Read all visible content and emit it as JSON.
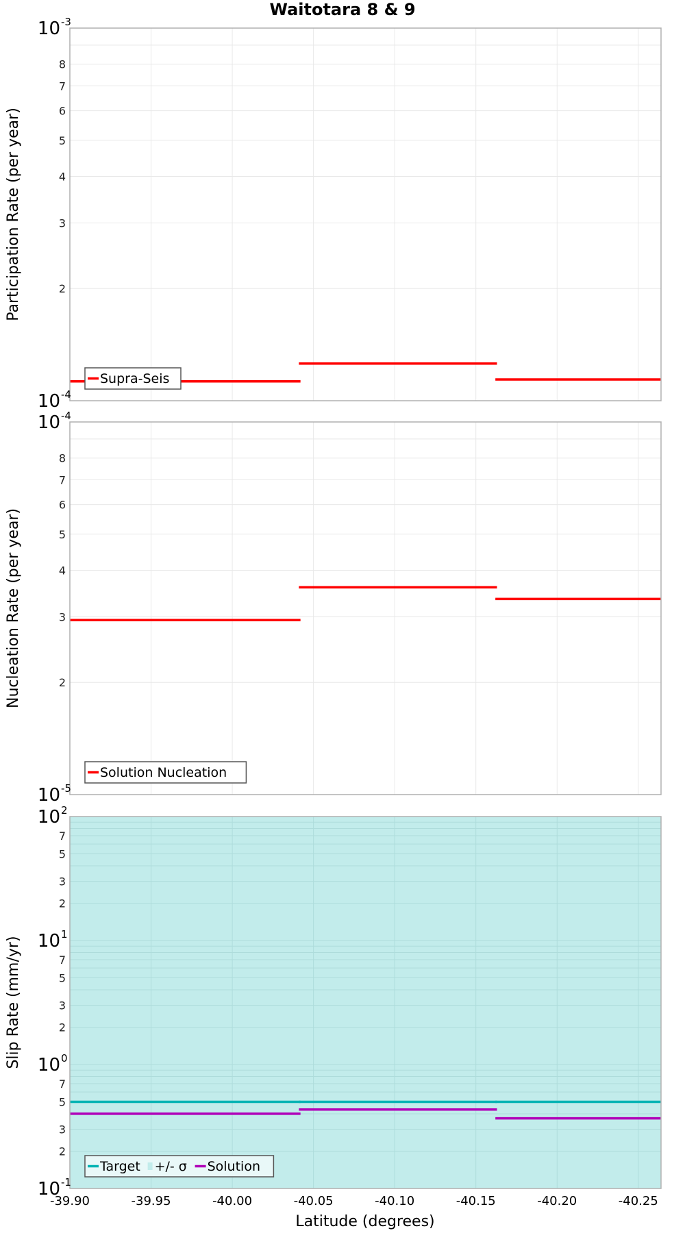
{
  "chart_data": [
    {
      "type": "line",
      "panel": "participation",
      "title": "Waitotara 8 & 9",
      "xlabel": "",
      "ylabel": "Participation Rate (per year)",
      "yscale": "log",
      "ylim": [
        0.0001,
        0.001
      ],
      "xlim": [
        -39.9,
        -40.264
      ],
      "x_reversed": true,
      "grid": true,
      "legend_position": "lower left",
      "legend": [
        "Supra-Seis"
      ],
      "series": [
        {
          "name": "Supra-Seis",
          "color": "#ff0000",
          "style": "step",
          "segments": [
            {
              "x_start": -39.9,
              "x_end": -40.042,
              "y": 0.0001127
            },
            {
              "x_start": -40.041,
              "x_end": -40.163,
              "y": 0.0001258
            },
            {
              "x_start": -40.162,
              "x_end": -40.264,
              "y": 0.000114
            }
          ]
        }
      ],
      "y_ticks_major": [
        "10^-4",
        "10^-3"
      ],
      "y_ticks_minor": [
        "2",
        "3",
        "4",
        "5",
        "6",
        "7",
        "8"
      ]
    },
    {
      "type": "line",
      "panel": "nucleation",
      "xlabel": "",
      "ylabel": "Nucleation Rate (per year)",
      "yscale": "log",
      "ylim": [
        1e-05,
        0.0001
      ],
      "xlim": [
        -39.9,
        -40.264
      ],
      "x_reversed": true,
      "grid": true,
      "legend_position": "lower left",
      "legend": [
        "Solution Nucleation"
      ],
      "series": [
        {
          "name": "Solution Nucleation",
          "color": "#ff0000",
          "style": "step",
          "segments": [
            {
              "x_start": -39.9,
              "x_end": -40.042,
              "y": 2.94e-05
            },
            {
              "x_start": -40.041,
              "x_end": -40.163,
              "y": 3.6e-05
            },
            {
              "x_start": -40.162,
              "x_end": -40.264,
              "y": 3.35e-05
            }
          ]
        }
      ],
      "y_ticks_major": [
        "10^-5",
        "10^-4"
      ],
      "y_ticks_minor": [
        "2",
        "3",
        "4",
        "5",
        "6",
        "7",
        "8"
      ]
    },
    {
      "type": "line",
      "panel": "slip-rate",
      "xlabel": "Latitude (degrees)",
      "ylabel": "Slip Rate (mm/yr)",
      "yscale": "log",
      "ylim": [
        0.1,
        100
      ],
      "xlim": [
        -39.9,
        -40.264
      ],
      "x_reversed": true,
      "grid": true,
      "legend_position": "lower left",
      "legend": [
        "Target",
        "+/- σ",
        "Solution"
      ],
      "series": [
        {
          "name": "Target",
          "color": "#00b3b3",
          "style": "step",
          "segments": [
            {
              "x_start": -39.9,
              "x_end": -40.042,
              "y": 0.5
            },
            {
              "x_start": -40.041,
              "x_end": -40.163,
              "y": 0.5
            },
            {
              "x_start": -40.162,
              "x_end": -40.264,
              "y": 0.5
            }
          ]
        },
        {
          "name": "+/- σ",
          "color": "#c2eceb",
          "style": "band",
          "y_low": 0.1,
          "y_high": 100,
          "note": "band fills the entire plotted range"
        },
        {
          "name": "Solution",
          "color": "#b000b8",
          "style": "step",
          "segments": [
            {
              "x_start": -39.9,
              "x_end": -40.042,
              "y": 0.401
            },
            {
              "x_start": -40.041,
              "x_end": -40.163,
              "y": 0.433
            },
            {
              "x_start": -40.162,
              "x_end": -40.264,
              "y": 0.368
            }
          ]
        }
      ],
      "y_ticks_major": [
        "10^-1",
        "10^0",
        "10^1",
        "10^2"
      ],
      "y_ticks_minor": [
        "2",
        "3",
        "5",
        "7"
      ],
      "x_ticks": [
        "-39.90",
        "-39.95",
        "-40.00",
        "-40.05",
        "-40.10",
        "-40.15",
        "-40.20",
        "-40.25"
      ]
    }
  ],
  "figure": {
    "title": "Waitotara 8 & 9",
    "xlabel": "Latitude (degrees)",
    "panels": [
      {
        "ylabel": "Participation Rate (per year)",
        "legend": [
          "Supra-Seis"
        ],
        "top_exp": "-3",
        "bottom_exp": "-4"
      },
      {
        "ylabel": "Nucleation Rate (per year)",
        "legend": [
          "Solution Nucleation"
        ],
        "top_exp": "-4",
        "bottom_exp": "-5"
      },
      {
        "ylabel": "Slip Rate (mm/yr)",
        "legend": [
          "Target",
          "+/- σ",
          "Solution"
        ],
        "exps": [
          "2",
          "1",
          "0",
          "-1"
        ]
      }
    ]
  },
  "colors": {
    "supra_seis": "#ff0000",
    "nucleation": "#ff0000",
    "target": "#00b3b3",
    "sigma_band": "#c2eceb",
    "solution": "#b000b8",
    "grid": "#e8e8e8",
    "axis": "#b0b0b0"
  }
}
